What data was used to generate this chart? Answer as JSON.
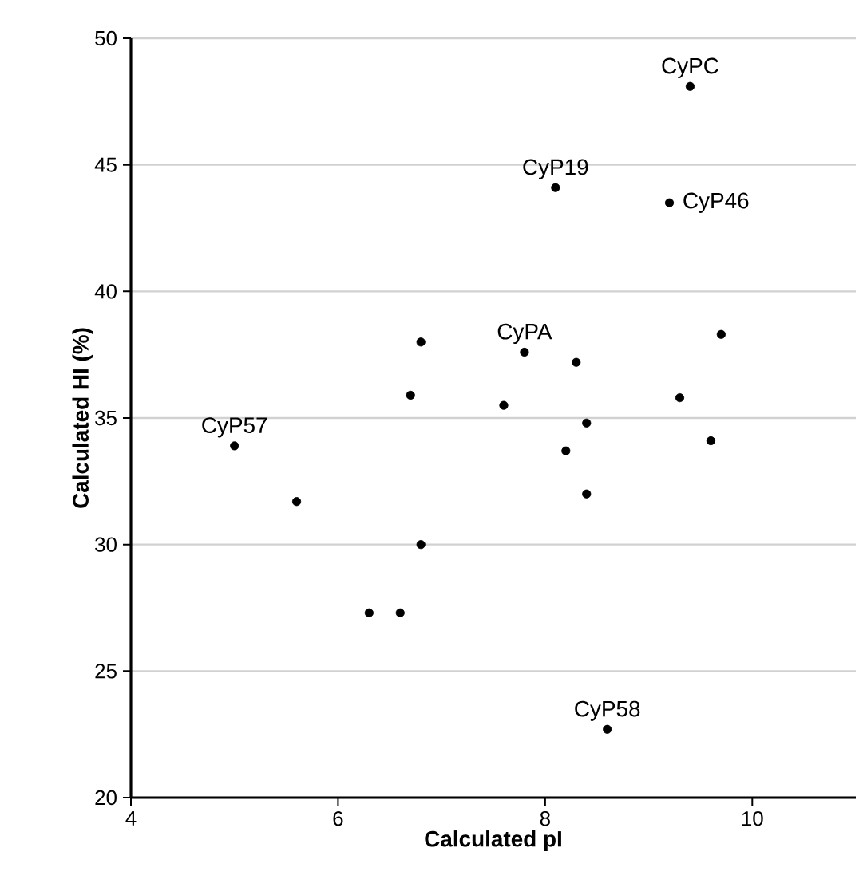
{
  "chart_data": {
    "type": "scatter",
    "xlabel": "Calculated pI",
    "ylabel": "Calculated HI (%)",
    "xlim": [
      4,
      11
    ],
    "ylim": [
      20,
      50
    ],
    "xticks": [
      4,
      6,
      8,
      10
    ],
    "yticks": [
      20,
      25,
      30,
      35,
      40,
      45,
      50
    ],
    "grid": "y",
    "series": [
      {
        "color": "#000000",
        "x": [
          9.4,
          8.1,
          9.2,
          7.8,
          5.0,
          8.6,
          6.8,
          6.7,
          7.6,
          8.3,
          9.7,
          9.3,
          8.4,
          8.2,
          9.6,
          8.4,
          5.6,
          6.8,
          6.3,
          6.6
        ],
        "values": [
          48.1,
          44.1,
          43.5,
          37.6,
          33.9,
          22.7,
          38.0,
          35.9,
          35.5,
          37.2,
          38.3,
          35.8,
          34.8,
          33.7,
          34.1,
          32.0,
          31.7,
          30.0,
          27.3,
          27.3
        ]
      }
    ],
    "annotations": [
      {
        "text": "CyPC",
        "x": 9.4,
        "y": 48.1
      },
      {
        "text": "CyP19",
        "x": 8.1,
        "y": 44.1
      },
      {
        "text": "CyP46",
        "x": 9.2,
        "y": 43.5
      },
      {
        "text": "CyPA",
        "x": 7.8,
        "y": 37.6
      },
      {
        "text": "CyP57",
        "x": 5.0,
        "y": 33.9
      },
      {
        "text": "CyP58",
        "x": 8.6,
        "y": 22.7
      }
    ]
  }
}
